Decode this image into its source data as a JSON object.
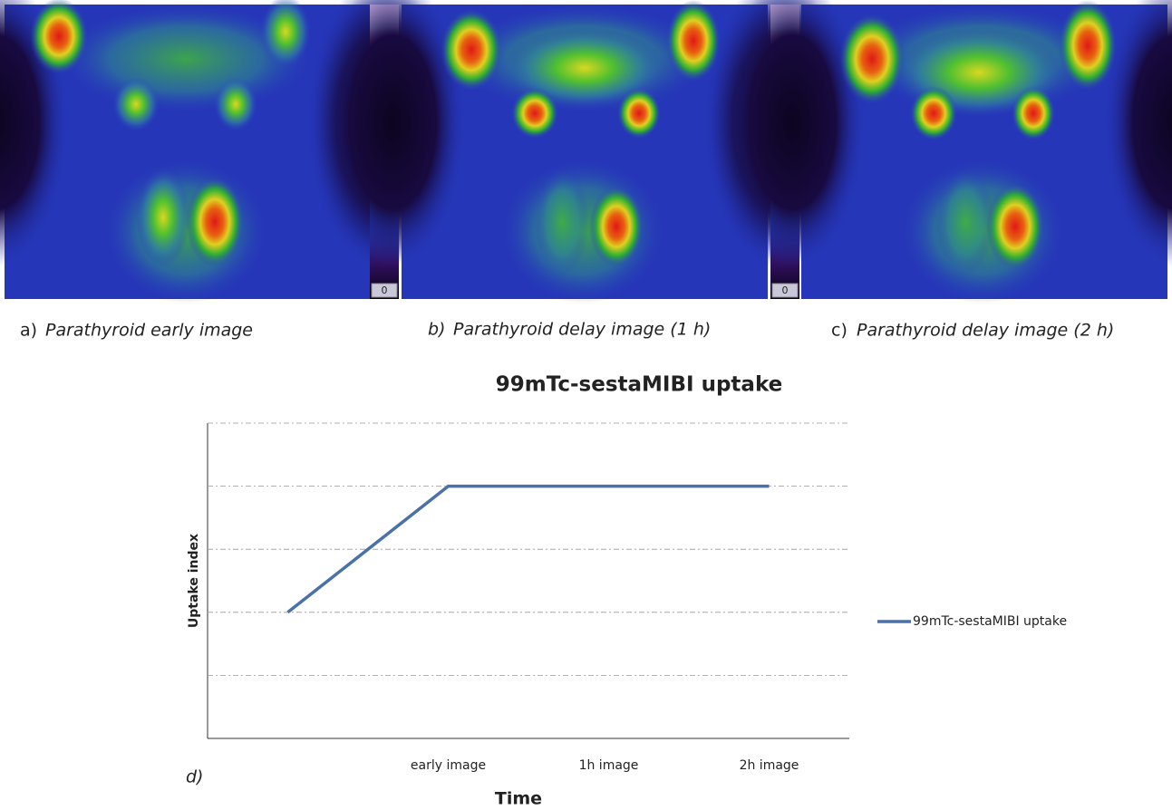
{
  "panels": [
    {
      "label": "a)",
      "caption": "Parathyroid early image",
      "colorbar_min": 0
    },
    {
      "label": "b)",
      "caption": "Parathyroid delay image (1 h)",
      "colorbar_min": 0
    },
    {
      "label": "c)",
      "caption": "Parathyroid delay image (2 h)"
    }
  ],
  "chart_data": {
    "type": "line",
    "title": "99mTc-sestaMIBI uptake",
    "panel_label": "d)",
    "x_label": "Time",
    "y_label": "Uptake index",
    "categories": [
      null,
      "early image",
      "1h image",
      "2h image"
    ],
    "series": [
      {
        "name": "99mTc-sestaMIBI uptake",
        "color": "#4a72a8",
        "values": [
          2,
          4,
          4,
          4
        ]
      }
    ],
    "ylim": [
      0,
      5
    ],
    "yticks": [
      1,
      2,
      3,
      4,
      5
    ],
    "ytick_labels": false,
    "grid": true,
    "legend": "right"
  }
}
